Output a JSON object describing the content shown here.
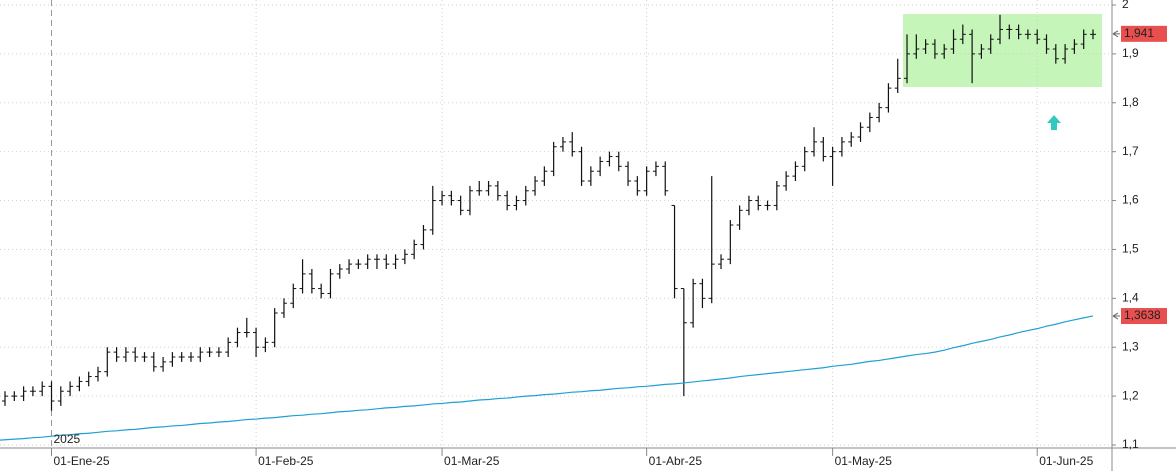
{
  "chart_data": {
    "type": "ohlc",
    "year_label": "2025",
    "categories": [
      null,
      null,
      null,
      null,
      null,
      "01-Ene-25",
      null,
      null,
      null,
      null,
      null,
      null,
      null,
      null,
      null,
      null,
      null,
      null,
      null,
      null,
      null,
      null,
      null,
      null,
      null,
      null,
      null,
      "01-Feb-25",
      null,
      null,
      null,
      null,
      null,
      null,
      null,
      null,
      null,
      null,
      null,
      null,
      null,
      null,
      null,
      null,
      null,
      null,
      null,
      "01-Mar-25",
      null,
      null,
      null,
      null,
      null,
      null,
      null,
      null,
      null,
      null,
      null,
      null,
      null,
      null,
      null,
      null,
      null,
      null,
      null,
      null,
      null,
      "01-Abr-25",
      null,
      null,
      null,
      null,
      null,
      null,
      null,
      null,
      null,
      null,
      null,
      null,
      null,
      null,
      null,
      null,
      null,
      null,
      null,
      "01-May-25",
      null,
      null,
      null,
      null,
      null,
      null,
      null,
      null,
      null,
      null,
      null,
      null,
      null,
      null,
      null,
      null,
      null,
      null,
      null,
      null,
      null,
      "01-Jun-25",
      null,
      null,
      null,
      null,
      null,
      null
    ],
    "ohlc": {
      "color": "#111111",
      "open": [
        1.19,
        1.2,
        1.2,
        1.21,
        1.21,
        1.22,
        1.19,
        1.21,
        1.22,
        1.23,
        1.24,
        1.25,
        1.29,
        1.28,
        1.29,
        1.28,
        1.28,
        1.26,
        1.27,
        1.28,
        1.28,
        1.28,
        1.29,
        1.29,
        1.29,
        1.31,
        1.33,
        1.33,
        1.3,
        1.31,
        1.37,
        1.39,
        1.42,
        1.45,
        1.42,
        1.41,
        1.45,
        1.46,
        1.47,
        1.47,
        1.48,
        1.48,
        1.47,
        1.48,
        1.49,
        1.51,
        1.54,
        1.6,
        1.61,
        1.6,
        1.58,
        1.62,
        1.62,
        1.63,
        1.61,
        1.59,
        1.6,
        1.62,
        1.64,
        1.66,
        1.71,
        1.72,
        1.7,
        1.64,
        1.66,
        1.68,
        1.69,
        1.67,
        1.64,
        1.62,
        1.66,
        1.67,
        1.59,
        1.42,
        1.35,
        1.43,
        1.4,
        1.47,
        1.48,
        1.55,
        1.58,
        1.6,
        1.59,
        1.59,
        1.63,
        1.65,
        1.67,
        1.7,
        1.72,
        1.69,
        1.7,
        1.72,
        1.73,
        1.75,
        1.77,
        1.79,
        1.83,
        1.85,
        1.9,
        1.91,
        1.92,
        1.9,
        1.91,
        1.93,
        1.94,
        1.9,
        1.91,
        1.93,
        1.95,
        1.95,
        1.94,
        1.94,
        1.93,
        1.91,
        1.89,
        1.91,
        1.92,
        1.94
      ],
      "high": [
        1.21,
        1.21,
        1.22,
        1.22,
        1.23,
        1.23,
        1.22,
        1.23,
        1.24,
        1.25,
        1.26,
        1.3,
        1.3,
        1.3,
        1.3,
        1.29,
        1.29,
        1.28,
        1.29,
        1.29,
        1.29,
        1.3,
        1.3,
        1.3,
        1.32,
        1.34,
        1.36,
        1.34,
        1.32,
        1.38,
        1.4,
        1.43,
        1.48,
        1.46,
        1.43,
        1.46,
        1.47,
        1.48,
        1.48,
        1.49,
        1.49,
        1.49,
        1.49,
        1.5,
        1.52,
        1.55,
        1.63,
        1.62,
        1.62,
        1.61,
        1.63,
        1.64,
        1.64,
        1.64,
        1.62,
        1.61,
        1.63,
        1.65,
        1.67,
        1.72,
        1.73,
        1.74,
        1.71,
        1.67,
        1.69,
        1.7,
        1.7,
        1.68,
        1.65,
        1.67,
        1.68,
        1.68,
        1.59,
        1.42,
        1.44,
        1.44,
        1.65,
        1.49,
        1.56,
        1.59,
        1.61,
        1.61,
        1.6,
        1.64,
        1.66,
        1.68,
        1.71,
        1.75,
        1.73,
        1.71,
        1.73,
        1.74,
        1.76,
        1.78,
        1.8,
        1.84,
        1.89,
        1.94,
        1.94,
        1.93,
        1.93,
        1.92,
        1.95,
        1.96,
        1.95,
        1.92,
        1.94,
        1.98,
        1.96,
        1.96,
        1.95,
        1.95,
        1.94,
        1.92,
        1.92,
        1.93,
        1.95,
        1.95
      ],
      "low": [
        1.18,
        1.19,
        1.19,
        1.2,
        1.2,
        1.17,
        1.18,
        1.2,
        1.21,
        1.22,
        1.23,
        1.24,
        1.27,
        1.27,
        1.27,
        1.27,
        1.25,
        1.25,
        1.26,
        1.27,
        1.27,
        1.27,
        1.28,
        1.28,
        1.28,
        1.3,
        1.32,
        1.28,
        1.29,
        1.3,
        1.36,
        1.38,
        1.41,
        1.41,
        1.4,
        1.4,
        1.44,
        1.45,
        1.46,
        1.46,
        1.46,
        1.46,
        1.46,
        1.47,
        1.48,
        1.5,
        1.53,
        1.59,
        1.59,
        1.57,
        1.57,
        1.61,
        1.61,
        1.6,
        1.58,
        1.58,
        1.59,
        1.61,
        1.63,
        1.65,
        1.7,
        1.69,
        1.63,
        1.63,
        1.65,
        1.67,
        1.66,
        1.63,
        1.61,
        1.61,
        1.65,
        1.61,
        1.4,
        1.2,
        1.34,
        1.38,
        1.39,
        1.46,
        1.47,
        1.54,
        1.57,
        1.58,
        1.58,
        1.58,
        1.62,
        1.64,
        1.66,
        1.69,
        1.68,
        1.63,
        1.69,
        1.71,
        1.72,
        1.74,
        1.76,
        1.78,
        1.82,
        1.84,
        1.89,
        1.9,
        1.89,
        1.89,
        1.9,
        1.92,
        1.84,
        1.89,
        1.9,
        1.92,
        1.93,
        1.93,
        1.93,
        1.92,
        1.9,
        1.88,
        1.88,
        1.9,
        1.91,
        1.93
      ],
      "close": [
        1.2,
        1.2,
        1.21,
        1.21,
        1.22,
        1.19,
        1.21,
        1.22,
        1.23,
        1.24,
        1.25,
        1.29,
        1.28,
        1.29,
        1.28,
        1.28,
        1.26,
        1.27,
        1.28,
        1.28,
        1.28,
        1.29,
        1.29,
        1.29,
        1.31,
        1.33,
        1.33,
        1.3,
        1.31,
        1.37,
        1.39,
        1.42,
        1.45,
        1.42,
        1.41,
        1.45,
        1.46,
        1.47,
        1.47,
        1.48,
        1.48,
        1.47,
        1.48,
        1.49,
        1.51,
        1.54,
        1.6,
        1.61,
        1.6,
        1.58,
        1.62,
        1.62,
        1.63,
        1.61,
        1.59,
        1.6,
        1.62,
        1.64,
        1.66,
        1.71,
        1.72,
        1.7,
        1.64,
        1.66,
        1.68,
        1.69,
        1.67,
        1.64,
        1.62,
        1.66,
        1.67,
        1.62,
        1.42,
        1.35,
        1.43,
        1.4,
        1.47,
        1.48,
        1.55,
        1.58,
        1.6,
        1.59,
        1.59,
        1.63,
        1.65,
        1.67,
        1.7,
        1.72,
        1.69,
        1.7,
        1.72,
        1.73,
        1.75,
        1.77,
        1.79,
        1.83,
        1.85,
        1.9,
        1.91,
        1.92,
        1.9,
        1.91,
        1.93,
        1.94,
        1.9,
        1.91,
        1.93,
        1.95,
        1.95,
        1.94,
        1.94,
        1.93,
        1.91,
        1.89,
        1.91,
        1.92,
        1.94,
        1.94
      ]
    },
    "ma": {
      "color": "#1ea0d6",
      "values": [
        1.11,
        1.112,
        1.113,
        1.115,
        1.116,
        1.118,
        1.12,
        1.121,
        1.123,
        1.124,
        1.126,
        1.128,
        1.129,
        1.131,
        1.132,
        1.134,
        1.136,
        1.137,
        1.139,
        1.14,
        1.142,
        1.144,
        1.145,
        1.147,
        1.148,
        1.15,
        1.152,
        1.153,
        1.155,
        1.156,
        1.158,
        1.16,
        1.161,
        1.163,
        1.164,
        1.166,
        1.168,
        1.169,
        1.171,
        1.172,
        1.174,
        1.176,
        1.177,
        1.179,
        1.18,
        1.182,
        1.184,
        1.185,
        1.187,
        1.188,
        1.19,
        1.192,
        1.193,
        1.195,
        1.196,
        1.198,
        1.2,
        1.201,
        1.203,
        1.204,
        1.206,
        1.208,
        1.209,
        1.211,
        1.212,
        1.214,
        1.216,
        1.217,
        1.219,
        1.22,
        1.222,
        1.224,
        1.225,
        1.227,
        1.229,
        1.231,
        1.233,
        1.235,
        1.237,
        1.24,
        1.242,
        1.244,
        1.246,
        1.248,
        1.25,
        1.252,
        1.254,
        1.256,
        1.258,
        1.261,
        1.263,
        1.265,
        1.268,
        1.271,
        1.273,
        1.276,
        1.279,
        1.282,
        1.285,
        1.287,
        1.29,
        1.294,
        1.299,
        1.303,
        1.308,
        1.312,
        1.316,
        1.321,
        1.325,
        1.33,
        1.334,
        1.338,
        1.343,
        1.347,
        1.352,
        1.356,
        1.36,
        1.364
      ]
    },
    "last_labels": [
      {
        "value": 1.941,
        "label": "1,941"
      },
      {
        "value": 1.3638,
        "label": "1,3638"
      }
    ],
    "last_label_color": "#e8504f",
    "ylim": [
      1.1,
      2
    ],
    "yticks": [
      {
        "value": 1.1,
        "label": "1,1"
      },
      {
        "value": 1.2,
        "label": "1,2"
      },
      {
        "value": 1.3,
        "label": "1,3"
      },
      {
        "value": 1.4,
        "label": "1,4"
      },
      {
        "value": 1.5,
        "label": "1,5"
      },
      {
        "value": 1.6,
        "label": "1,6"
      },
      {
        "value": 1.7,
        "label": "1,7"
      },
      {
        "value": 1.8,
        "label": "1,8"
      },
      {
        "value": 1.9,
        "label": "1,9"
      },
      2
    ],
    "grid": true
  }
}
